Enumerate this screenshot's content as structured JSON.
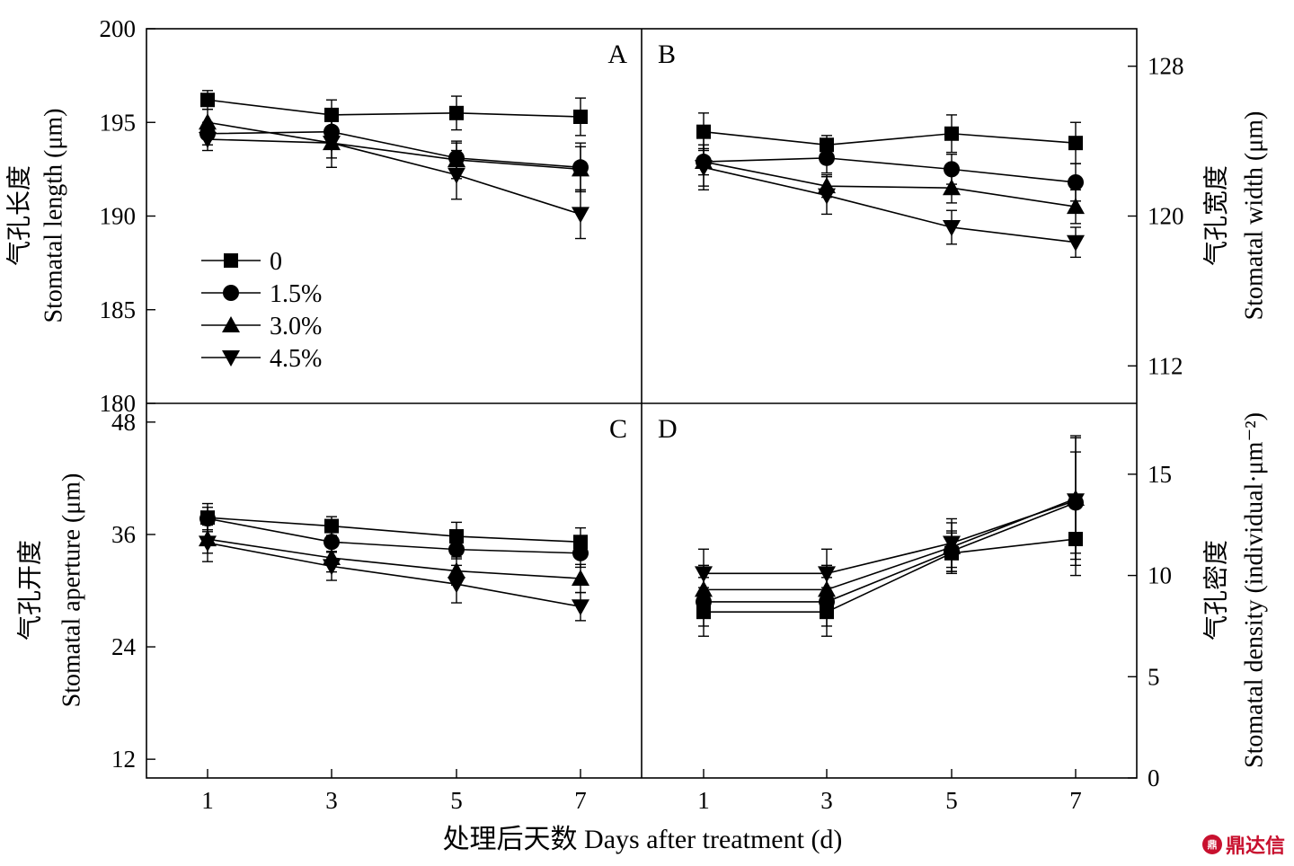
{
  "shared": {
    "x_ticks": [
      1,
      3,
      5,
      7
    ],
    "xlabel": "处理后天数 Days after treatment (d)",
    "series_names": [
      "0",
      "1.5%",
      "3.0%",
      "4.5%"
    ],
    "markers": [
      "square",
      "circle",
      "triangle-up",
      "triangle-down"
    ],
    "legend_placement": "inside panel A, lower-left"
  },
  "chart_data": [
    {
      "panel": "A",
      "type": "line",
      "x": [
        1,
        3,
        5,
        7
      ],
      "ylabel_cn": "气孔长度",
      "ylabel_en": "Stomatal length (μm)",
      "ylim": [
        180,
        200
      ],
      "yticks": [
        180,
        185,
        190,
        195,
        200
      ],
      "y_axis": "left",
      "series": [
        {
          "name": "0",
          "values": [
            196.2,
            195.4,
            195.5,
            195.3
          ],
          "errors": [
            0.5,
            0.8,
            0.9,
            1.0
          ]
        },
        {
          "name": "1.5%",
          "values": [
            194.4,
            194.5,
            193.1,
            192.6
          ],
          "errors": [
            0.6,
            0.7,
            0.8,
            1.3
          ]
        },
        {
          "name": "3.0%",
          "values": [
            195.0,
            193.9,
            193.0,
            192.5
          ],
          "errors": [
            0.7,
            0.8,
            1.0,
            1.2
          ]
        },
        {
          "name": "4.5%",
          "values": [
            194.1,
            193.9,
            192.2,
            190.1
          ],
          "errors": [
            0.6,
            1.3,
            1.3,
            1.3
          ]
        }
      ]
    },
    {
      "panel": "B",
      "type": "line",
      "x": [
        1,
        3,
        5,
        7
      ],
      "ylabel_cn": "气孔宽度",
      "ylabel_en": "Stomatal width (μm)",
      "ylim": [
        110,
        130
      ],
      "yticks": [
        112,
        120,
        128
      ],
      "y_axis": "right",
      "series": [
        {
          "name": "0",
          "values": [
            124.5,
            123.8,
            124.4,
            123.9
          ],
          "errors": [
            1.0,
            0.5,
            1.0,
            1.1
          ]
        },
        {
          "name": "1.5%",
          "values": [
            122.9,
            123.1,
            122.5,
            121.8
          ],
          "errors": [
            0.7,
            0.8,
            0.8,
            1.0
          ]
        },
        {
          "name": "3.0%",
          "values": [
            122.9,
            121.6,
            121.5,
            120.5
          ],
          "errors": [
            1.3,
            0.6,
            0.8,
            0.9
          ]
        },
        {
          "name": "4.5%",
          "values": [
            122.6,
            121.1,
            119.4,
            118.6
          ],
          "errors": [
            1.2,
            1.0,
            0.9,
            0.8
          ]
        }
      ]
    },
    {
      "panel": "C",
      "type": "line",
      "x": [
        1,
        3,
        5,
        7
      ],
      "ylabel_cn": "气孔开度",
      "ylabel_en": "Stomatal aperture (μm)",
      "ylim": [
        10,
        50
      ],
      "yticks": [
        12,
        24,
        36,
        48
      ],
      "y_axis": "left",
      "series": [
        {
          "name": "0",
          "values": [
            37.8,
            36.9,
            35.8,
            35.2
          ],
          "errors": [
            1.5,
            1.0,
            1.5,
            1.5
          ]
        },
        {
          "name": "1.5%",
          "values": [
            37.7,
            35.2,
            34.4,
            34.0
          ],
          "errors": [
            1.2,
            1.0,
            1.0,
            1.5
          ]
        },
        {
          "name": "3.0%",
          "values": [
            35.5,
            33.5,
            32.1,
            31.3
          ],
          "errors": [
            1.5,
            1.5,
            1.5,
            1.5
          ]
        },
        {
          "name": "4.5%",
          "values": [
            35.1,
            32.6,
            30.7,
            28.3
          ],
          "errors": [
            2.0,
            1.5,
            2.0,
            1.5
          ]
        }
      ]
    },
    {
      "panel": "D",
      "type": "line",
      "x": [
        1,
        3,
        5,
        7
      ],
      "ylabel_cn": "气孔密度",
      "ylabel_en": "Stomatal density (individual·μm⁻²)",
      "ylim": [
        0,
        18.5
      ],
      "yticks": [
        0,
        5,
        10,
        15
      ],
      "y_axis": "right",
      "series": [
        {
          "name": "0",
          "values": [
            8.2,
            8.2,
            11.1,
            11.8
          ],
          "errors": [
            1.2,
            1.2,
            1.0,
            1.8
          ]
        },
        {
          "name": "1.5%",
          "values": [
            8.7,
            8.7,
            11.2,
            13.6
          ],
          "errors": [
            1.2,
            1.2,
            1.0,
            2.5
          ]
        },
        {
          "name": "3.0%",
          "values": [
            9.3,
            9.3,
            11.4,
            13.8
          ],
          "errors": [
            1.2,
            1.2,
            1.2,
            3.0
          ]
        },
        {
          "name": "4.5%",
          "values": [
            10.1,
            10.1,
            11.6,
            13.7
          ],
          "errors": [
            1.2,
            1.2,
            1.2,
            3.2
          ]
        }
      ]
    }
  ]
}
